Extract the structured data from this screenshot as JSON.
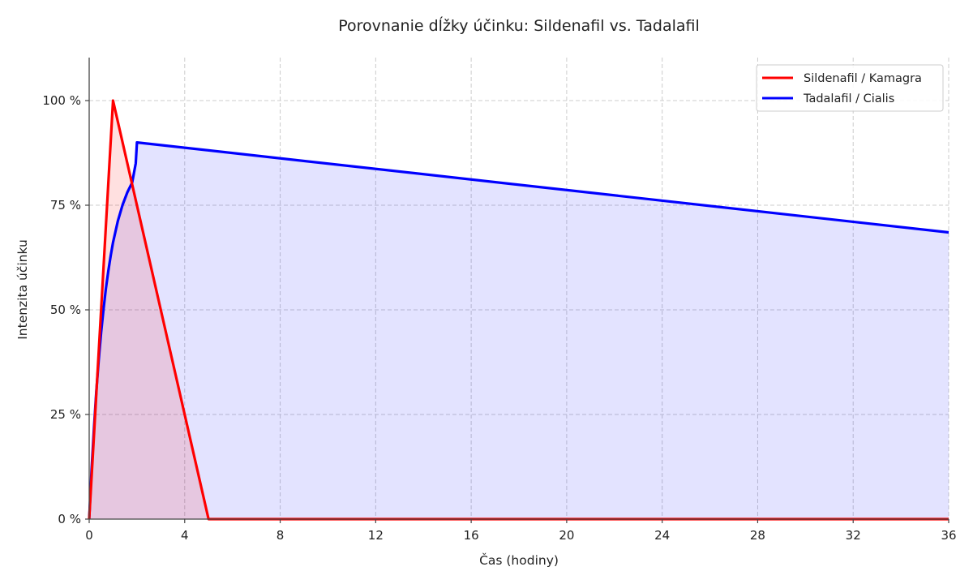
{
  "chart_data": {
    "type": "area",
    "title": "Porovnanie dĺžky účinku: Sildenafil vs. Tadalafil",
    "xlabel": "Čas (hodiny)",
    "ylabel": "Intenzita účinku",
    "xlim": [
      0,
      36
    ],
    "ylim": [
      0,
      110
    ],
    "xticks": [
      0,
      4,
      8,
      12,
      16,
      20,
      24,
      28,
      32,
      36
    ],
    "xtick_labels": [
      "0",
      "4",
      "8",
      "12",
      "16",
      "20",
      "24",
      "28",
      "32",
      "36"
    ],
    "yticks": [
      0,
      25,
      50,
      75,
      100
    ],
    "ytick_labels": [
      "0 %",
      "25 %",
      "50 %",
      "75 %",
      "100 %"
    ],
    "grid": true,
    "legend_position": "upper right",
    "series": [
      {
        "name": "Sildenafil / Kamagra",
        "color": "#ff0000",
        "fill": "#ff0000",
        "fill_alpha": 0.12,
        "x": [
          0,
          1,
          5,
          36
        ],
        "y": [
          0,
          100,
          0,
          0
        ]
      },
      {
        "name": "Tadalafil / Cialis",
        "color": "#0000ff",
        "fill": "#0000ff",
        "fill_alpha": 0.11,
        "x": [
          0,
          0.1,
          0.2,
          0.3,
          0.4,
          0.5,
          0.6,
          0.7,
          0.8,
          0.9,
          1.0,
          1.2,
          1.4,
          1.6,
          1.8,
          1.95,
          2.0,
          36
        ],
        "y": [
          0,
          11.7,
          21.8,
          30.6,
          38.1,
          44.6,
          50.2,
          55.1,
          59.3,
          62.9,
          66.1,
          71.2,
          75.1,
          78.1,
          80.4,
          85,
          90,
          68.5
        ]
      }
    ]
  }
}
